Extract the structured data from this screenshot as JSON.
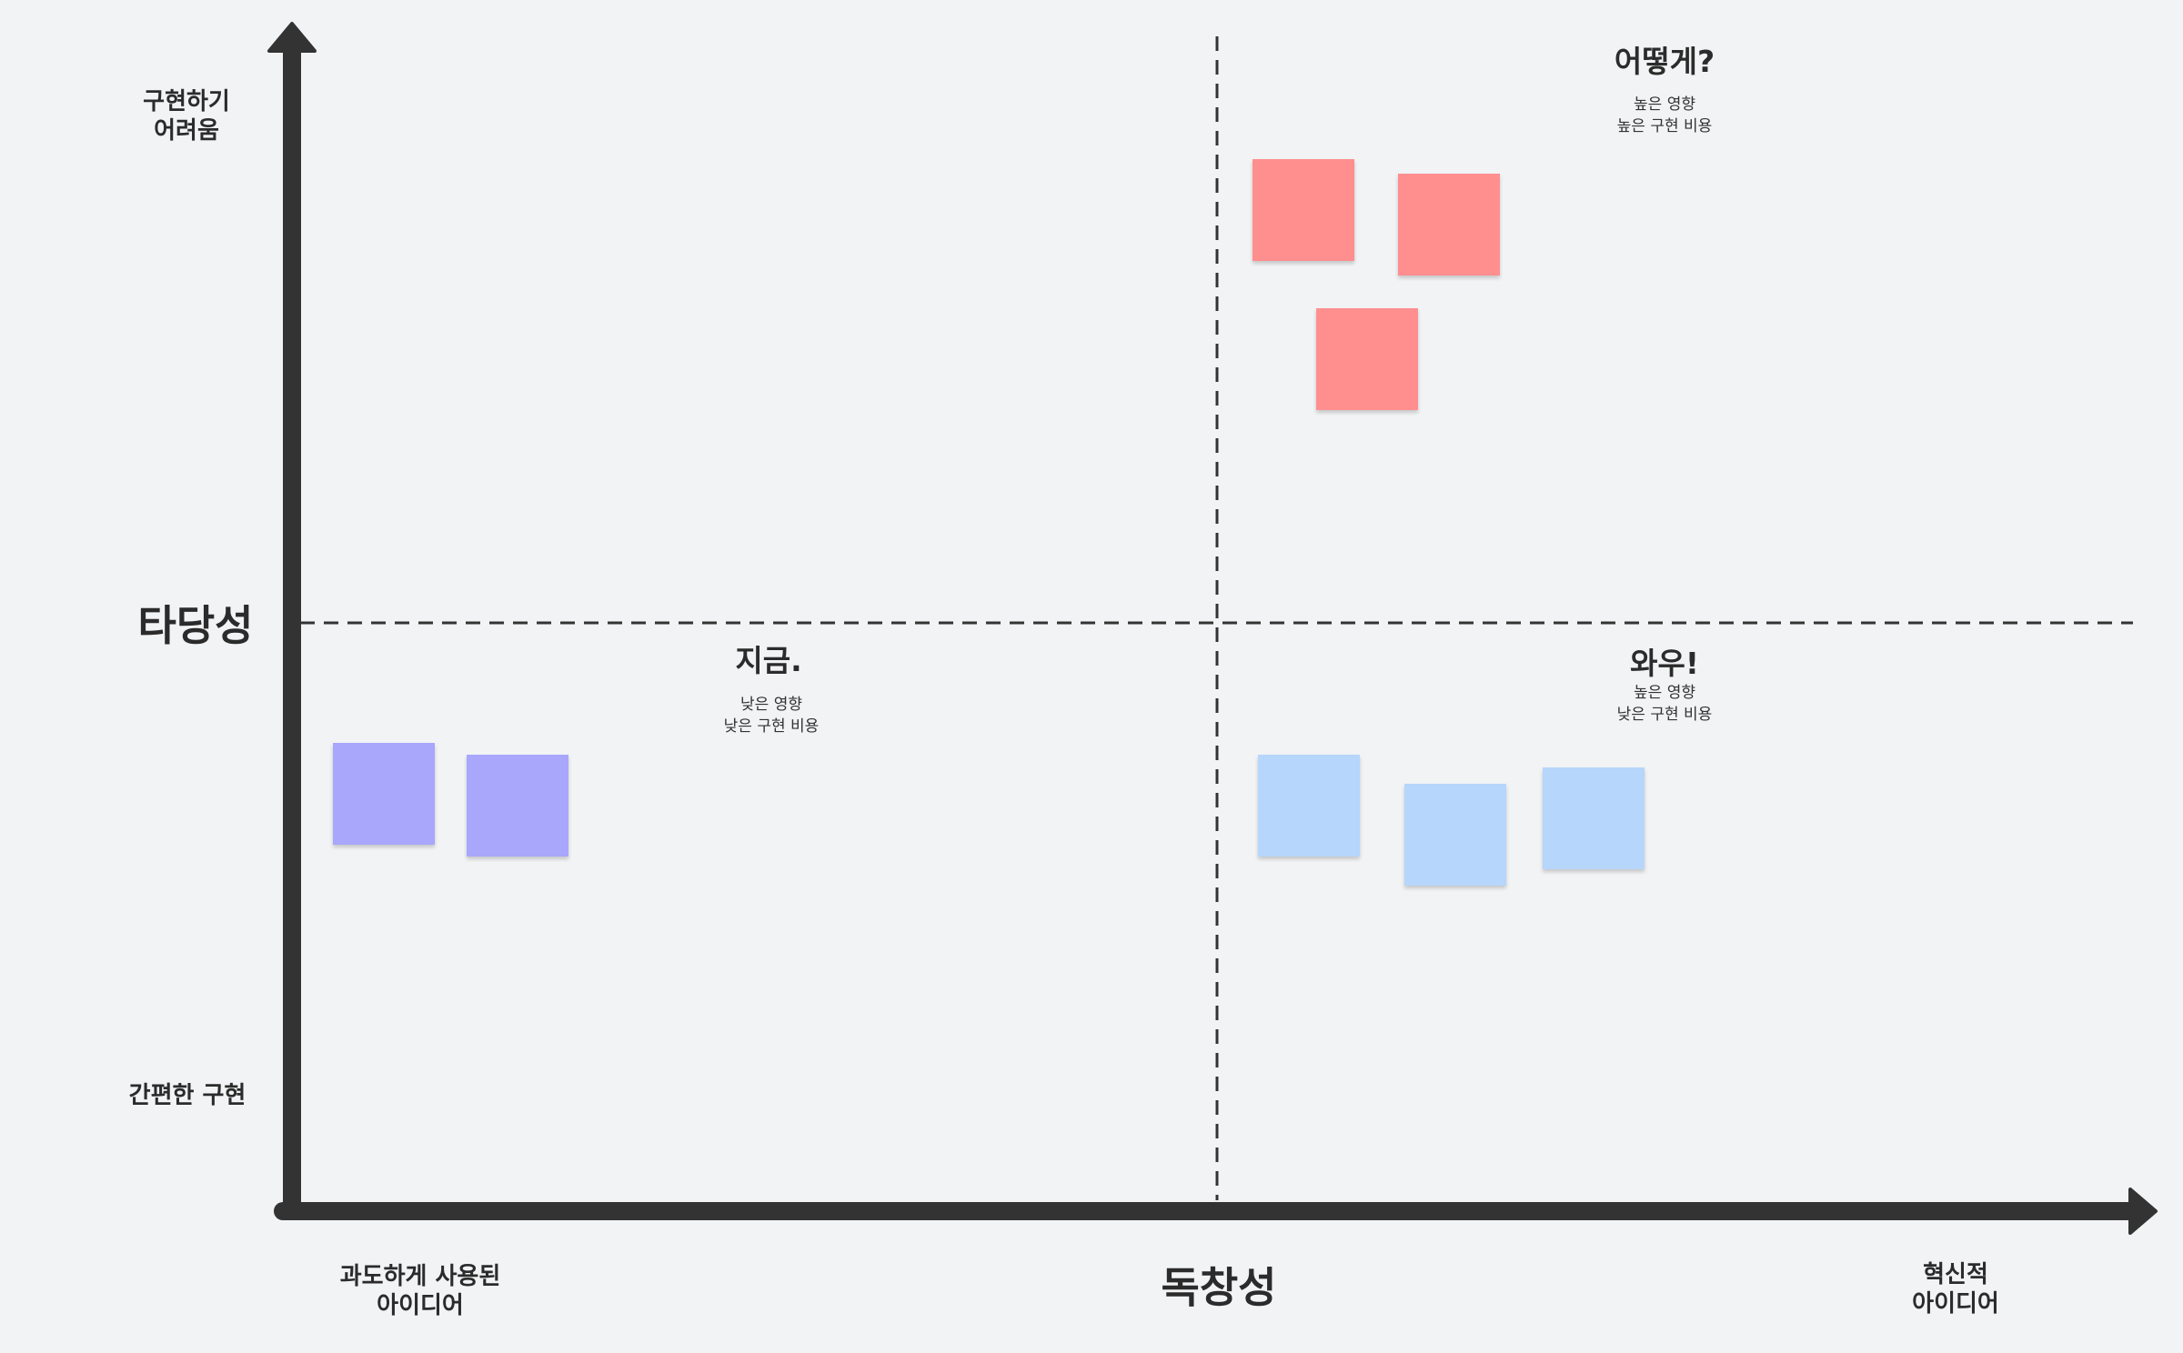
{
  "y_axis": {
    "title": "타당성",
    "top_label": "구현하기\n어려움",
    "bottom_label": "간편한 구현"
  },
  "x_axis": {
    "title": "독창성",
    "left_label": "과도하게 사용된\n아이디어",
    "right_label": "혁신적\n아이디어"
  },
  "quadrants": {
    "top_right": {
      "title": "어떻게?",
      "subtitle": "높은 영향\n높은 구현 비용"
    },
    "bottom_left": {
      "title": "지금.",
      "subtitle": "낮은 영향\n낮은 구현 비용"
    },
    "bottom_right": {
      "title": "와우!",
      "subtitle": "높은 영향\n낮은 구현 비용"
    }
  },
  "colors": {
    "background": "#f2f3f5",
    "axis": "#333333",
    "note_red": "#ff8f8f",
    "note_purple": "#a8a7fb",
    "note_blue": "#b6d6fb"
  },
  "sticky_notes": {
    "top_right_count": 3,
    "bottom_left_count": 2,
    "bottom_right_count": 3
  }
}
